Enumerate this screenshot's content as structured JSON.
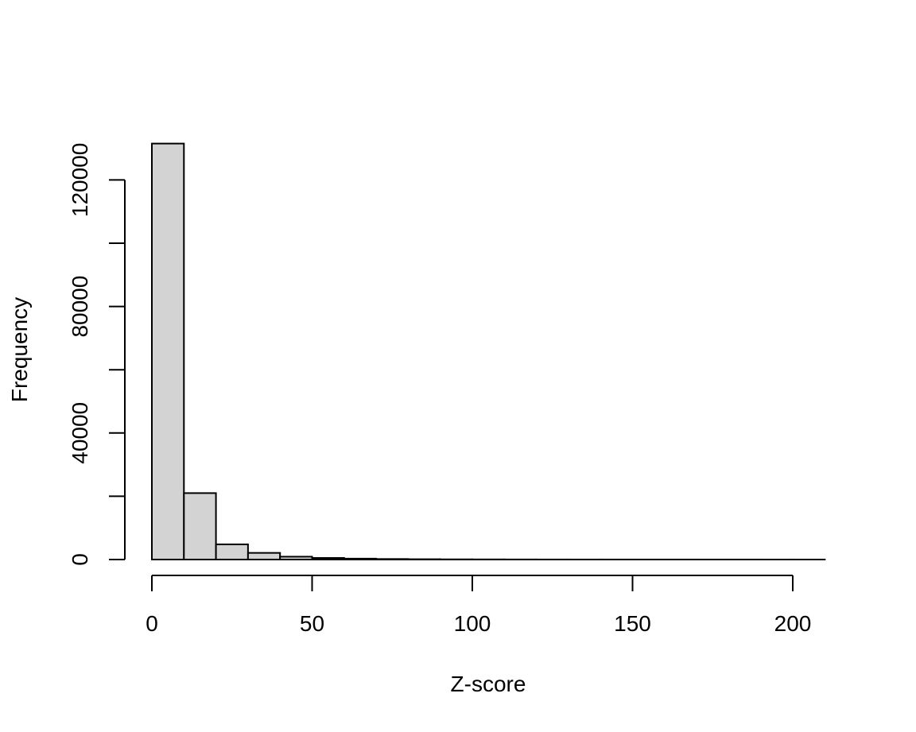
{
  "chart_data": {
    "type": "bar",
    "title": "",
    "xlabel": "Z-score",
    "ylabel": "Frequency",
    "bin_edges": [
      0,
      10,
      20,
      30,
      40,
      50,
      60,
      70,
      80,
      90,
      100,
      110,
      120,
      130,
      140,
      150,
      160,
      170,
      180,
      190,
      200,
      210
    ],
    "values": [
      131500,
      21000,
      4800,
      2100,
      900,
      500,
      280,
      160,
      100,
      60,
      40,
      25,
      15,
      10,
      8,
      5,
      4,
      3,
      2,
      1,
      1
    ],
    "xlim": [
      0,
      210
    ],
    "ylim": [
      0,
      131500
    ],
    "x_ticks": [
      "0",
      "50",
      "100",
      "150",
      "200"
    ],
    "y_ticks": [
      "0",
      "40000",
      "80000",
      "120000"
    ],
    "bar_color": "#d3d3d3",
    "grid": false
  }
}
